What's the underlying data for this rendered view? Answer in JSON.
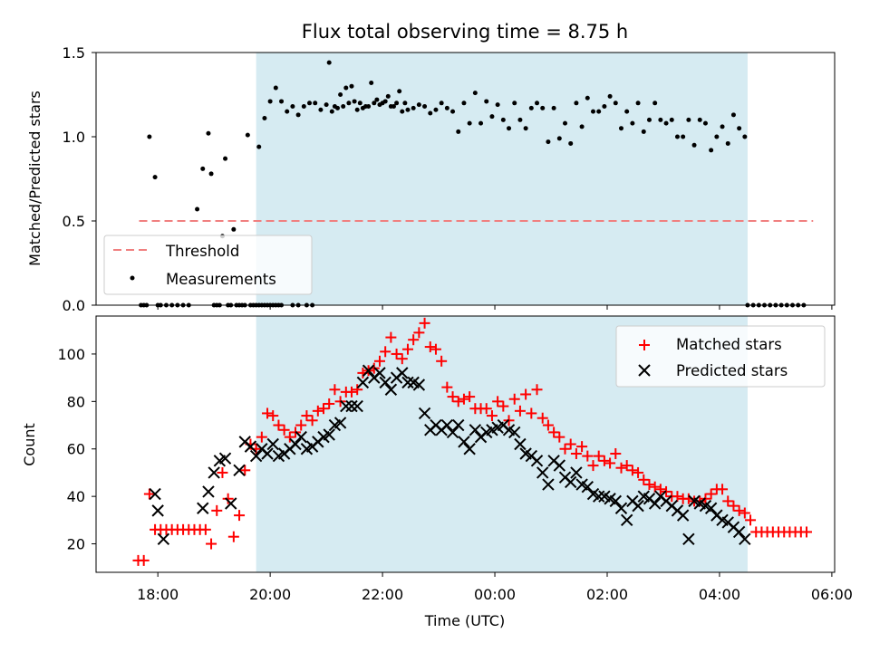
{
  "title": "Flux total observing time = 8.75 h",
  "colors": {
    "threshold": "#f08080",
    "measurements": "#000000",
    "matched": "#ff0000",
    "predicted": "#000000",
    "shade": "#add8e6"
  },
  "chart_data": [
    {
      "type": "scatter",
      "ylabel": "Matched/Predicted stars",
      "ylim": [
        0,
        1.5
      ],
      "yticks": [
        "0.0",
        "0.5",
        "1.0",
        "1.5"
      ],
      "shaded_region": {
        "start": "19:45",
        "end": "04:30"
      },
      "legend": [
        "Threshold",
        "Measurements"
      ],
      "legend_position": "lower-left",
      "threshold": {
        "name": "Threshold",
        "y": 0.5,
        "x_start": "17:40",
        "x_end": "05:40"
      },
      "measurements": {
        "name": "Measurements",
        "t": [
          -5.0,
          -4.95,
          -4.9,
          -4.75,
          -4.7,
          -4.6,
          -4.55,
          -4.5,
          -4.45,
          -4.35,
          -4.3,
          -4.25,
          -4.2,
          -4.15,
          -4.1,
          -4.05,
          -4.0,
          -3.95,
          -3.9,
          -3.85,
          -3.8,
          -3.6,
          -3.5,
          -3.35,
          -3.25,
          -3.0,
          -2.9,
          -2.8,
          -2.7,
          -2.6,
          -2.5,
          -2.45,
          -2.35,
          -2.25,
          -2.15,
          -2.05,
          -1.95,
          -1.85,
          -1.75,
          -1.65,
          -1.55,
          -1.45,
          -1.35,
          -1.25,
          -1.15,
          -1.05,
          -0.95,
          -0.85,
          -0.75,
          -0.65,
          -0.55,
          -0.45,
          -0.35,
          -0.25,
          -0.15,
          -0.05,
          0.05,
          0.15,
          0.25,
          0.35,
          0.45,
          0.55,
          0.65,
          0.75,
          0.85,
          0.95,
          1.05,
          1.15,
          1.25,
          1.35,
          1.45,
          1.55,
          1.65,
          1.75,
          1.85,
          1.95,
          2.05,
          2.15,
          2.25,
          2.35,
          2.45,
          2.55,
          2.65,
          2.75,
          2.85,
          2.95,
          3.05,
          3.15,
          3.25,
          3.35,
          3.45,
          3.55,
          3.65,
          3.75,
          3.85,
          3.95,
          4.05,
          4.15,
          4.25,
          4.35,
          4.45,
          4.5,
          4.6,
          4.7,
          4.8,
          4.9,
          5.0,
          5.1,
          5.2,
          5.3,
          5.4,
          5.5
        ],
        "y": [
          0.0,
          0.0,
          0.0,
          0.0,
          0.0,
          0.0,
          0.0,
          0.0,
          0.0,
          0.0,
          0.0,
          0.0,
          0.0,
          0.0,
          0.0,
          0.0,
          0.0,
          0.0,
          0.0,
          0.0,
          0.0,
          0.0,
          0.0,
          0.0,
          0.0,
          1.19,
          1.15,
          1.17,
          1.18,
          1.2,
          1.21,
          1.16,
          1.17,
          1.18,
          1.2,
          1.19,
          1.21,
          1.18,
          1.2,
          1.15,
          1.16,
          1.17,
          1.19,
          1.18,
          1.14,
          1.16,
          1.2,
          1.17,
          1.15,
          1.03,
          1.2,
          1.08,
          1.26,
          1.08,
          1.21,
          1.12,
          1.19,
          1.1,
          1.05,
          1.2,
          1.1,
          1.05,
          1.17,
          1.2,
          1.17,
          0.97,
          1.17,
          0.99,
          1.08,
          0.96,
          1.2,
          1.06,
          1.23,
          1.15,
          1.15,
          1.18,
          1.24,
          1.2,
          1.05,
          1.15,
          1.08,
          1.2,
          1.03,
          1.1,
          1.2,
          1.1,
          1.08,
          1.1,
          1.0,
          1.0,
          1.1,
          0.95,
          1.1,
          1.08,
          0.92,
          1.0,
          1.06,
          0.96,
          1.13,
          1.05,
          1.0,
          0.0,
          0.0,
          0.0,
          0.0,
          0.0,
          0.0,
          0.0,
          0.0,
          0.0,
          0.0,
          0.0
        ]
      },
      "measurements_early": {
        "t": [
          -6.3,
          -6.25,
          -6.2,
          -6.15,
          -6.05,
          -6.0,
          -5.95,
          -5.85,
          -5.75,
          -5.65,
          -5.55,
          -5.45,
          -5.3,
          -5.2,
          -5.1,
          -5.05,
          -4.85,
          -4.8,
          -4.65,
          -4.4,
          -4.2
        ],
        "y": [
          0.0,
          0.0,
          0.0,
          1.0,
          0.76,
          0.0,
          0.0,
          0.0,
          0.0,
          0.0,
          0.0,
          0.0,
          0.57,
          0.81,
          1.02,
          0.78,
          0.41,
          0.87,
          0.45,
          1.01,
          0.94
        ]
      },
      "extra_points": {
        "t": [
          -4.1,
          -4.0,
          -3.9,
          -3.8,
          -3.7,
          -3.6,
          -3.5,
          -3.4,
          -3.3,
          -3.2,
          -3.1,
          -2.95,
          -2.85,
          -2.75,
          -2.65,
          -2.55,
          -2.4,
          -2.3,
          -2.2,
          -2.1,
          -2.0,
          -1.9,
          -1.8,
          -1.7,
          -1.6
        ],
        "y": [
          1.11,
          1.21,
          1.29,
          1.21,
          1.15,
          1.18,
          1.13,
          1.18,
          1.2,
          1.2,
          1.16,
          1.44,
          1.18,
          1.25,
          1.29,
          1.3,
          1.2,
          1.18,
          1.32,
          1.22,
          1.2,
          1.24,
          1.18,
          1.27,
          1.2
        ]
      }
    },
    {
      "type": "scatter",
      "xlabel": "Time (UTC)",
      "ylabel": "Count",
      "ylim": [
        8,
        116
      ],
      "yticks": [
        "20",
        "40",
        "60",
        "80",
        "100"
      ],
      "xticks": [
        "18:00",
        "20:00",
        "22:00",
        "00:00",
        "02:00",
        "04:00",
        "06:00"
      ],
      "legend": [
        "Matched stars",
        "Predicted stars"
      ],
      "legend_position": "top-right",
      "series": [
        {
          "name": "Matched stars",
          "marker": "plus",
          "t": [
            -6.35,
            -6.25,
            -6.15,
            -6.05,
            -5.95,
            -5.85,
            -5.75,
            -5.65,
            -5.55,
            -5.45,
            -5.35,
            -5.25,
            -5.15,
            -5.05,
            -4.95,
            -4.85,
            -4.75,
            -4.65,
            -4.55,
            -4.45,
            -4.35,
            -4.25,
            -4.15,
            -4.05,
            -3.95,
            -3.85,
            -3.75,
            -3.65,
            -3.55,
            -3.45,
            -3.35,
            -3.25,
            -3.15,
            -3.05,
            -2.95,
            -2.85,
            -2.75,
            -2.65,
            -2.55,
            -2.45,
            -2.35,
            -2.25,
            -2.15,
            -2.05,
            -1.95,
            -1.85,
            -1.75,
            -1.65,
            -1.55,
            -1.45,
            -1.35,
            -1.25,
            -1.15,
            -1.05,
            -0.95,
            -0.85,
            -0.75,
            -0.65,
            -0.55,
            -0.45,
            -0.35,
            -0.25,
            -0.15,
            -0.05,
            0.05,
            0.15,
            0.25,
            0.35,
            0.45,
            0.55,
            0.65,
            0.75,
            0.85,
            0.95,
            1.05,
            1.15,
            1.25,
            1.35,
            1.45,
            1.55,
            1.65,
            1.75,
            1.85,
            1.95,
            2.05,
            2.15,
            2.25,
            2.35,
            2.45,
            2.55,
            2.65,
            2.75,
            2.85,
            2.95,
            3.05,
            3.15,
            3.25,
            3.35,
            3.45,
            3.55,
            3.65,
            3.75,
            3.85,
            3.95,
            4.05,
            4.15,
            4.25,
            4.35,
            4.45,
            4.55,
            4.65,
            4.75,
            4.85,
            4.95,
            5.05,
            5.15,
            5.25,
            5.35,
            5.45,
            5.55
          ],
          "y": [
            13,
            13,
            41,
            26,
            26,
            26,
            26,
            26,
            26,
            26,
            26,
            26,
            26,
            20,
            34,
            50,
            39,
            23,
            32,
            51,
            62,
            60,
            65,
            75,
            74,
            70,
            68,
            65,
            67,
            70,
            74,
            72,
            76,
            77,
            79,
            85,
            80,
            84,
            84,
            85,
            92,
            93,
            94,
            97,
            101,
            107,
            100,
            98,
            102,
            106,
            109,
            113,
            103,
            102,
            97,
            86,
            82,
            80,
            81,
            82,
            77,
            77,
            77,
            74,
            80,
            78,
            72,
            81,
            76,
            83,
            75,
            85,
            73,
            70,
            67,
            65,
            60,
            62,
            58,
            61,
            57,
            53,
            57,
            55,
            54,
            58,
            52,
            53,
            51,
            50,
            47,
            45,
            44,
            43,
            42,
            40,
            40,
            39,
            39,
            38,
            38,
            39,
            41,
            43,
            43,
            38,
            36,
            34,
            33,
            30,
            25,
            25,
            25,
            25,
            25,
            25,
            25,
            25,
            25,
            25
          ]
        },
        {
          "name": "Predicted stars",
          "marker": "x",
          "t": [
            -6.05,
            -6.0,
            -5.9,
            -5.2,
            -5.1,
            -5.0,
            -4.9,
            -4.8,
            -4.7,
            -4.55,
            -4.45,
            -4.35,
            -4.25,
            -4.15,
            -4.05,
            -3.95,
            -3.85,
            -3.75,
            -3.65,
            -3.55,
            -3.45,
            -3.35,
            -3.25,
            -3.15,
            -3.05,
            -2.95,
            -2.85,
            -2.75,
            -2.65,
            -2.55,
            -2.45,
            -2.35,
            -2.25,
            -2.15,
            -2.05,
            -1.95,
            -1.85,
            -1.75,
            -1.65,
            -1.55,
            -1.45,
            -1.35,
            -1.25,
            -1.15,
            -1.05,
            -0.95,
            -0.85,
            -0.75,
            -0.65,
            -0.55,
            -0.45,
            -0.35,
            -0.25,
            -0.15,
            -0.05,
            0.05,
            0.15,
            0.25,
            0.35,
            0.45,
            0.55,
            0.65,
            0.75,
            0.85,
            0.95,
            1.05,
            1.15,
            1.25,
            1.35,
            1.45,
            1.55,
            1.65,
            1.75,
            1.85,
            1.95,
            2.05,
            2.15,
            2.25,
            2.35,
            2.45,
            2.55,
            2.65,
            2.75,
            2.85,
            2.95,
            3.05,
            3.15,
            3.25,
            3.35,
            3.45,
            3.55,
            3.65,
            3.75,
            3.85,
            3.95,
            4.05,
            4.15,
            4.25,
            4.35,
            4.45
          ],
          "y": [
            41,
            34,
            22,
            35,
            42,
            50,
            55,
            56,
            37,
            51,
            63,
            61,
            57,
            60,
            58,
            62,
            57,
            58,
            60,
            62,
            65,
            60,
            61,
            63,
            65,
            66,
            70,
            71,
            78,
            78,
            78,
            88,
            93,
            90,
            92,
            88,
            85,
            90,
            92,
            88,
            88,
            87,
            75,
            68,
            70,
            68,
            70,
            67,
            70,
            63,
            60,
            68,
            65,
            67,
            68,
            69,
            70,
            68,
            67,
            62,
            58,
            57,
            55,
            50,
            45,
            55,
            53,
            48,
            46,
            50,
            45,
            44,
            41,
            40,
            40,
            39,
            38,
            35,
            30,
            38,
            36,
            40,
            39,
            37,
            40,
            38,
            36,
            34,
            32,
            22,
            38,
            37,
            36,
            35,
            32,
            30,
            29,
            27,
            25,
            22
          ]
        }
      ],
      "shaded_region": {
        "start": "19:45",
        "end": "04:30"
      }
    }
  ]
}
